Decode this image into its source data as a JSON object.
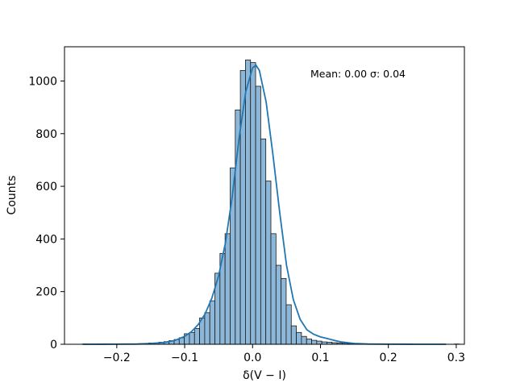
{
  "chart_data": {
    "type": "bar",
    "subtype": "histogram",
    "xlabel": "δ(V − I)",
    "ylabel": "Counts",
    "annotation": "Mean: 0.00 σ: 0.04",
    "xlim": [
      -0.277,
      0.312
    ],
    "ylim": [
      0,
      1130
    ],
    "xticks": [
      -0.2,
      -0.1,
      0.0,
      0.1,
      0.2,
      0.3
    ],
    "xtick_labels": [
      "−0.2",
      "−0.1",
      "0.0",
      "0.1",
      "0.2",
      "0.3"
    ],
    "yticks": [
      0,
      200,
      400,
      600,
      800,
      1000
    ],
    "ytick_labels": [
      "0",
      "200",
      "400",
      "600",
      "800",
      "1000"
    ],
    "bin_start": -0.2505,
    "bin_width": 0.0075,
    "counts": [
      1,
      0,
      0,
      0,
      0,
      0,
      0,
      0,
      0,
      1,
      1,
      2,
      3,
      5,
      5,
      8,
      10,
      14,
      18,
      25,
      40,
      45,
      60,
      100,
      120,
      165,
      270,
      345,
      420,
      670,
      890,
      1040,
      1080,
      1070,
      980,
      780,
      620,
      420,
      300,
      250,
      150,
      70,
      45,
      30,
      20,
      15,
      12,
      9,
      8,
      6,
      5,
      4,
      3,
      2,
      2,
      1,
      1,
      1,
      1,
      1,
      1,
      0,
      0,
      0,
      0,
      0,
      0,
      0,
      0,
      0,
      0,
      0,
      0,
      1
    ],
    "kde": [
      [
        -0.25,
        0
      ],
      [
        -0.2,
        0.3
      ],
      [
        -0.17,
        1
      ],
      [
        -0.15,
        3
      ],
      [
        -0.13,
        7
      ],
      [
        -0.115,
        14
      ],
      [
        -0.1,
        30
      ],
      [
        -0.09,
        48
      ],
      [
        -0.08,
        75
      ],
      [
        -0.07,
        115
      ],
      [
        -0.06,
        175
      ],
      [
        -0.05,
        260
      ],
      [
        -0.04,
        385
      ],
      [
        -0.03,
        560
      ],
      [
        -0.02,
        780
      ],
      [
        -0.01,
        960
      ],
      [
        0.0,
        1050
      ],
      [
        0.005,
        1060
      ],
      [
        0.01,
        1040
      ],
      [
        0.02,
        920
      ],
      [
        0.03,
        720
      ],
      [
        0.04,
        500
      ],
      [
        0.05,
        300
      ],
      [
        0.06,
        170
      ],
      [
        0.07,
        95
      ],
      [
        0.08,
        55
      ],
      [
        0.09,
        38
      ],
      [
        0.1,
        28
      ],
      [
        0.11,
        22
      ],
      [
        0.12,
        15
      ],
      [
        0.13,
        9
      ],
      [
        0.15,
        3
      ],
      [
        0.17,
        1
      ],
      [
        0.2,
        0.3
      ],
      [
        0.24,
        0.1
      ],
      [
        0.285,
        0
      ]
    ],
    "colors": {
      "bar_fill": "#8db7d8",
      "bar_edge": "#1a1a1a",
      "kde_line": "#1f77b4"
    }
  }
}
